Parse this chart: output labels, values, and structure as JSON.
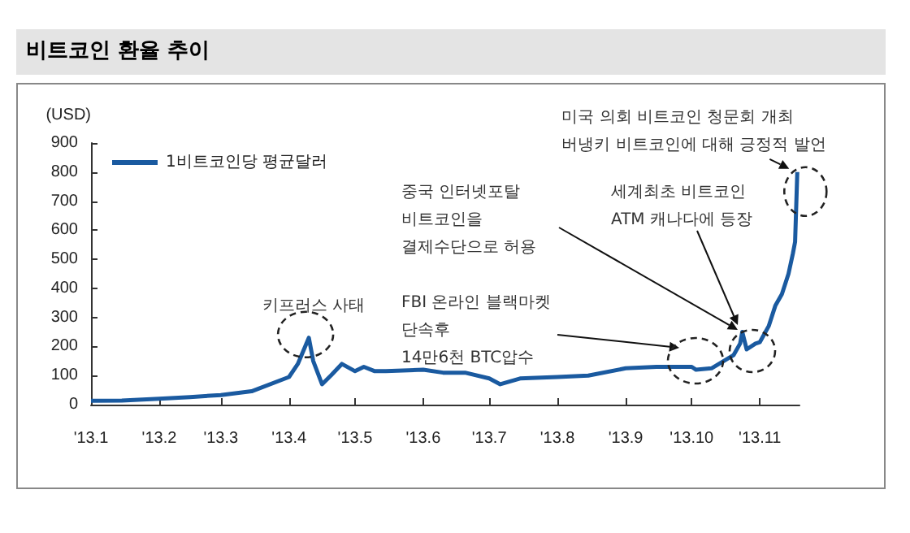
{
  "chart_data": {
    "type": "line",
    "title": "비트코인 환율 추이",
    "ylabel": "(USD)",
    "x": [
      "2013-01-01",
      "2013-01-15",
      "2013-02-01",
      "2013-02-15",
      "2013-03-01",
      "2013-03-15",
      "2013-04-01",
      "2013-04-05",
      "2013-04-10",
      "2013-04-12",
      "2013-04-16",
      "2013-04-20",
      "2013-04-25",
      "2013-05-01",
      "2013-05-05",
      "2013-05-10",
      "2013-05-15",
      "2013-06-01",
      "2013-06-10",
      "2013-06-20",
      "2013-07-01",
      "2013-07-06",
      "2013-07-15",
      "2013-08-01",
      "2013-08-15",
      "2013-09-01",
      "2013-09-15",
      "2013-10-01",
      "2013-10-03",
      "2013-10-10",
      "2013-10-20",
      "2013-10-23",
      "2013-10-24",
      "2013-10-26",
      "2013-10-30",
      "2013-11-01",
      "2013-11-05",
      "2013-11-08",
      "2013-11-11",
      "2013-11-14",
      "2013-11-16",
      "2013-11-17",
      "2013-11-18"
    ],
    "series": [
      {
        "name": "1비트코인당 평균달러",
        "color": "#1a5aa0",
        "values": [
          13,
          14,
          20,
          26,
          33,
          46,
          95,
          140,
          230,
          150,
          70,
          100,
          140,
          115,
          130,
          115,
          115,
          120,
          110,
          110,
          90,
          70,
          90,
          95,
          100,
          125,
          130,
          130,
          120,
          125,
          170,
          210,
          250,
          190,
          210,
          215,
          270,
          340,
          380,
          450,
          520,
          560,
          800
        ]
      }
    ],
    "xlim": [
      "2013-01-01",
      "2013-11-19"
    ],
    "xticks": [
      {
        "value": "2013-01-01",
        "label": "'13.1"
      },
      {
        "value": "2013-02-01",
        "label": "'13.2"
      },
      {
        "value": "2013-03-01",
        "label": "'13.3"
      },
      {
        "value": "2013-04-01",
        "label": "'13.4"
      },
      {
        "value": "2013-05-01",
        "label": "'13.5"
      },
      {
        "value": "2013-06-01",
        "label": "'13.6"
      },
      {
        "value": "2013-07-01",
        "label": "'13.7"
      },
      {
        "value": "2013-08-01",
        "label": "'13.8"
      },
      {
        "value": "2013-09-01",
        "label": "'13.9"
      },
      {
        "value": "2013-10-01",
        "label": "'13.10"
      },
      {
        "value": "2013-11-01",
        "label": "'13.11"
      }
    ],
    "ylim": [
      0,
      900
    ],
    "yticks": [
      0,
      100,
      200,
      300,
      400,
      500,
      600,
      700,
      800,
      900
    ],
    "grid": false,
    "legend": "top left",
    "marker": "none",
    "line_style": "solid",
    "annotations": [
      {
        "text": "키프러스 사태",
        "x": "2013-04-10",
        "y": 230
      },
      "FBI 온라인 블랙마켓\n단속후\n14만6천 BTC압수",
      "중국 인터넷포탈\n비트코인을\n결제수단으로 허용",
      "세계최초 비트코인\nATM 캐나다에 등장",
      {
        "text": "미국 의회 비트코인 청문회 개최\n버냉키 비트코인에 대해 긍정적 발언",
        "x": "2013-11-18",
        "y": 800
      }
    ]
  }
}
